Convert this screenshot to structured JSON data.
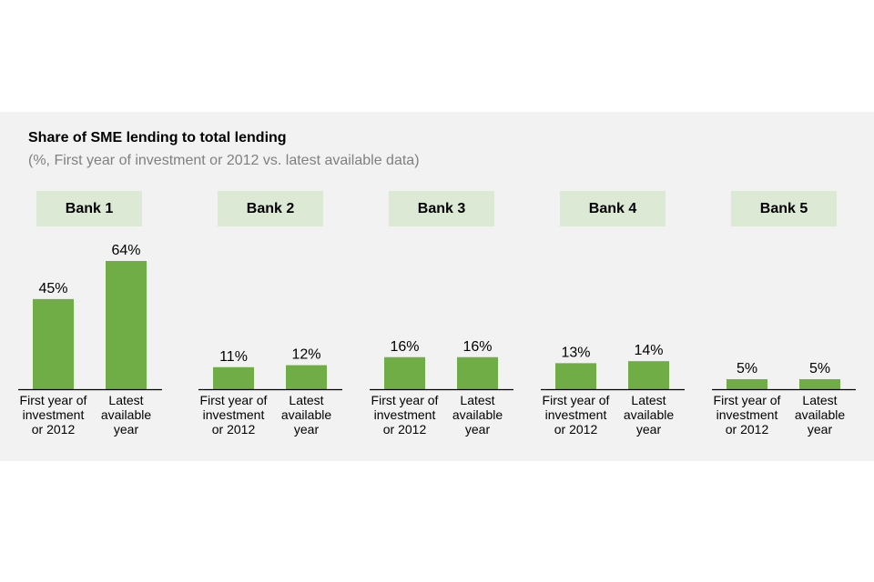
{
  "colors": {
    "panel": "#f2f2f2",
    "header_fill": "#dce9d5",
    "bar": "#70ad47",
    "subtitle": "#808080"
  },
  "chart_data": {
    "type": "bar",
    "title": "Share of SME lending to total lending",
    "subtitle": "(%, First year of investment or 2012 vs. latest available data)",
    "categories": [
      [
        "First year of",
        "investment",
        "or 2012"
      ],
      [
        "Latest",
        "available",
        "year"
      ]
    ],
    "value_suffix": "%",
    "panels": [
      {
        "name": "Bank 1",
        "values": [
          45,
          64
        ]
      },
      {
        "name": "Bank 2",
        "values": [
          11,
          12
        ]
      },
      {
        "name": "Bank 3",
        "values": [
          16,
          16
        ]
      },
      {
        "name": "Bank 4",
        "values": [
          13,
          14
        ]
      },
      {
        "name": "Bank 5",
        "values": [
          5,
          5
        ]
      }
    ],
    "ylim": [
      0,
      64
    ],
    "grid": false,
    "legend": "none"
  }
}
